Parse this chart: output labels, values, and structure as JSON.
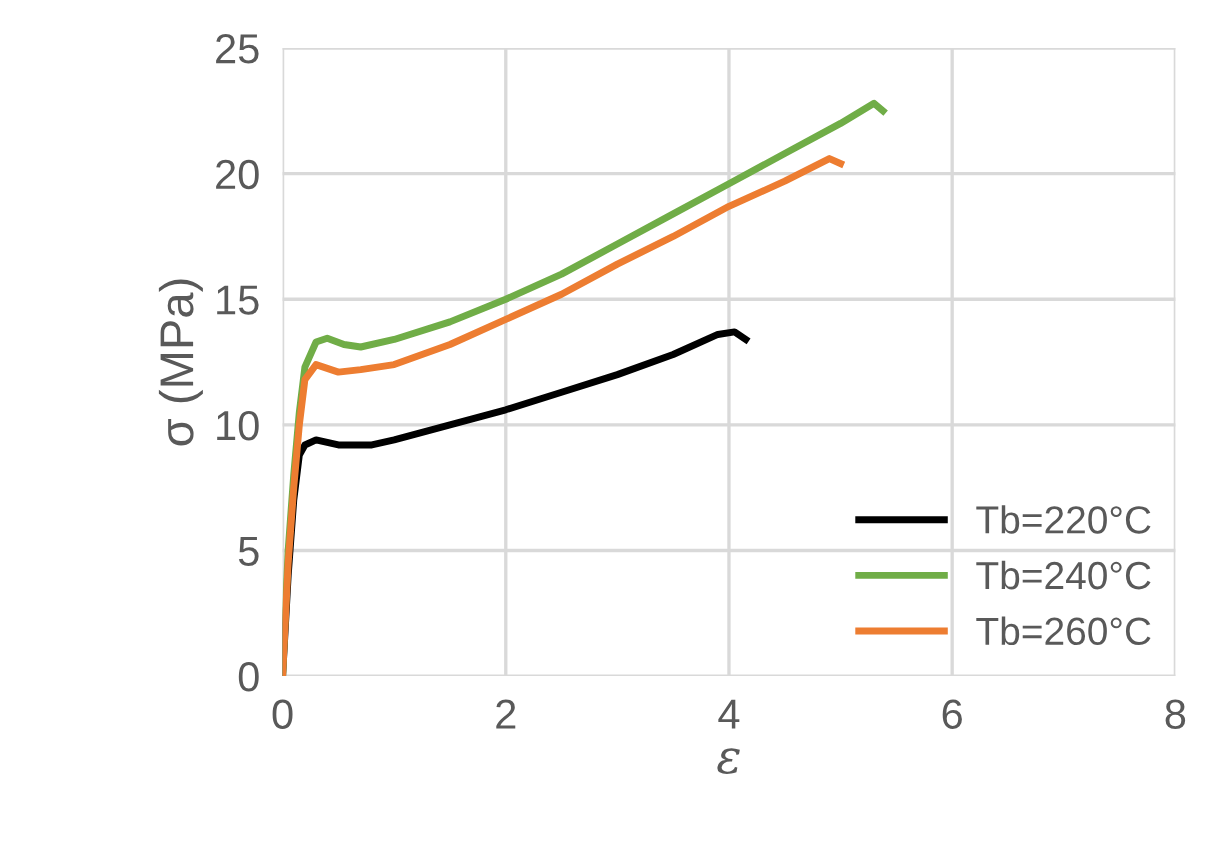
{
  "chart_data": {
    "type": "line",
    "xlabel": "ε",
    "ylabel": "σ (MPa)",
    "xlim": [
      0,
      8
    ],
    "ylim": [
      0,
      25
    ],
    "xticks": [
      0,
      2,
      4,
      6,
      8
    ],
    "yticks": [
      0,
      5,
      10,
      15,
      20,
      25
    ],
    "grid": true,
    "legend": "bottom right",
    "line_style": "solid",
    "marker": "none",
    "series": [
      {
        "name": "Tb=220°C",
        "color": "#000000",
        "x": [
          0,
          0.05,
          0.1,
          0.15,
          0.2,
          0.3,
          0.5,
          0.8,
          1,
          1.5,
          2,
          2.5,
          3,
          3.5,
          3.9,
          4.05,
          4.15
        ],
        "values": [
          0,
          4,
          7,
          8.8,
          9.2,
          9.4,
          9.2,
          9.2,
          9.4,
          10,
          10.6,
          11.3,
          12,
          12.8,
          13.6,
          13.7,
          13.4
        ]
      },
      {
        "name": "Tb=240°C",
        "color": "#70ad47",
        "x": [
          0,
          0.05,
          0.1,
          0.15,
          0.2,
          0.3,
          0.4,
          0.55,
          0.7,
          1,
          1.5,
          2,
          2.5,
          3,
          3.5,
          4,
          4.5,
          5,
          5.3,
          5.38
        ],
        "values": [
          0,
          5,
          8,
          10.5,
          12.3,
          13.3,
          13.45,
          13.2,
          13.1,
          13.4,
          14.1,
          15,
          16,
          17.2,
          18.4,
          19.6,
          20.8,
          22,
          22.8,
          22.5
        ]
      },
      {
        "name": "Tb=260°C",
        "color": "#ed7d31",
        "x": [
          0,
          0.05,
          0.1,
          0.15,
          0.2,
          0.3,
          0.5,
          0.7,
          1,
          1.5,
          2,
          2.5,
          3,
          3.5,
          4,
          4.5,
          4.9,
          5.0
        ],
        "values": [
          0,
          4.5,
          7.5,
          10,
          11.8,
          12.4,
          12.1,
          12.2,
          12.4,
          13.2,
          14.2,
          15.2,
          16.4,
          17.5,
          18.7,
          19.7,
          20.6,
          20.4
        ]
      }
    ]
  }
}
